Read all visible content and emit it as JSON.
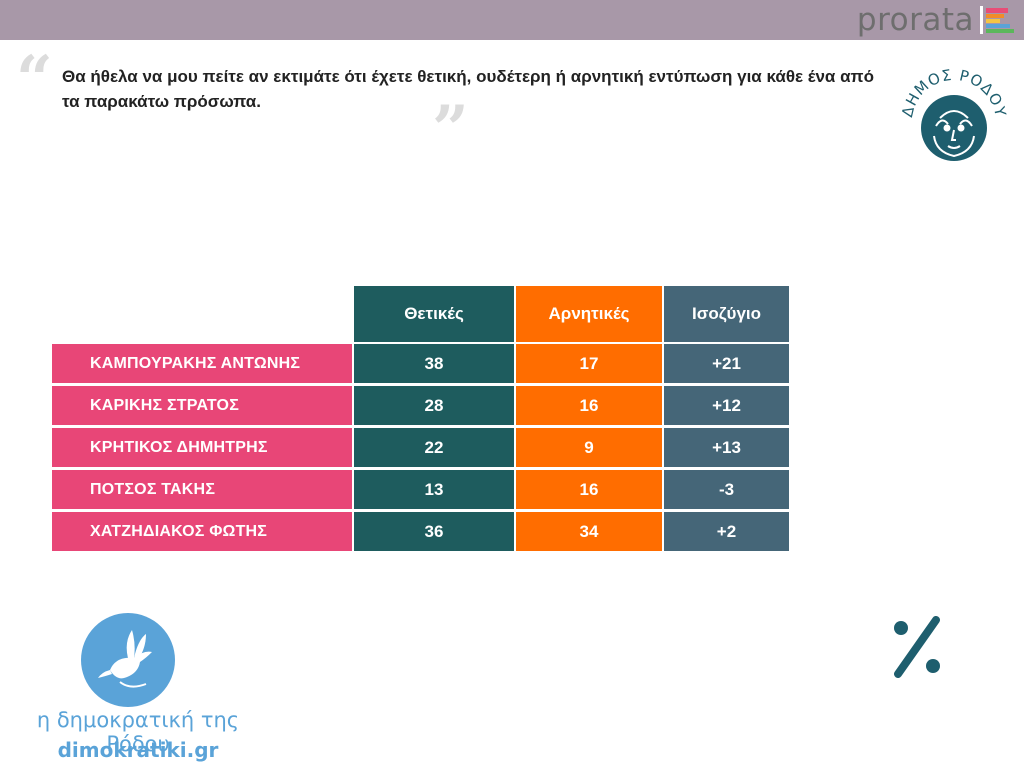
{
  "header": {
    "brand": "prorata",
    "brand_colors": [
      "#e84d77",
      "#f28c28",
      "#f5c542",
      "#5bb75b",
      "#5aa3d8"
    ]
  },
  "question": {
    "open_mark": "“",
    "text": "Θα ήθελα να μου πείτε αν εκτιμάτε ότι έχετε θετική, ουδέτερη ή αρνητική εντύπωση για κάθε ένα από τα παρακάτω πρόσωπα.",
    "close_mark": "”"
  },
  "municipality_logo": {
    "text": "ΔΗΜΟΣ ΡΟΔΟΥ",
    "color": "#1e5e6e"
  },
  "chart_data": {
    "type": "table",
    "columns": [
      "Θετικές",
      "Αρνητικές",
      "Ισοζύγιο"
    ],
    "rows": [
      {
        "name": "ΚΑΜΠΟΥΡΑΚΗΣ ΑΝΤΩΝΗΣ",
        "positive": "38",
        "negative": "17",
        "balance": "+21"
      },
      {
        "name": "ΚΑΡΙΚΗΣ ΣΤΡΑΤΟΣ",
        "positive": "28",
        "negative": "16",
        "balance": "+12"
      },
      {
        "name": "ΚΡΗΤΙΚΟΣ ΔΗΜΗΤΡΗΣ",
        "positive": "22",
        "negative": "9",
        "balance": "+13"
      },
      {
        "name": "ΠΟΤΣΟΣ ΤΑΚΗΣ",
        "positive": "13",
        "negative": "16",
        "balance": "-3"
      },
      {
        "name": "ΧΑΤΖΗΔΙΑΚΟΣ ΦΩΤΗΣ",
        "positive": "36",
        "negative": "34",
        "balance": "+2"
      }
    ],
    "colors": {
      "name": "#e84677",
      "positive": "#1e5c5e",
      "negative": "#ff6d00",
      "balance": "#456678"
    }
  },
  "footer": {
    "name": "η δημοκρατική της Ρόδου",
    "site": "dimokratiki.gr",
    "color": "#5aa3d8"
  },
  "percent_icon": {
    "symbol": "%",
    "color": "#1e5e6e"
  }
}
